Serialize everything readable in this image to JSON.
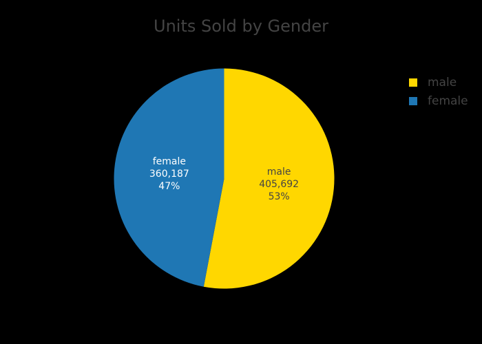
{
  "chart_data": {
    "type": "pie",
    "title": "Units Sold by Gender",
    "slices": [
      {
        "label": "male",
        "value": 405692,
        "value_text": "405,692",
        "percent_text": "53%",
        "color": "#FFD700",
        "text_color": "#444444"
      },
      {
        "label": "female",
        "value": 360187,
        "value_text": "360,187",
        "percent_text": "47%",
        "color": "#1F77B4",
        "text_color": "#FFFFFF"
      }
    ],
    "legend": {
      "placement": "top-right",
      "items": [
        {
          "label": "male",
          "color": "#FFD700"
        },
        {
          "label": "female",
          "color": "#1F77B4"
        }
      ]
    },
    "background": "#000000"
  }
}
